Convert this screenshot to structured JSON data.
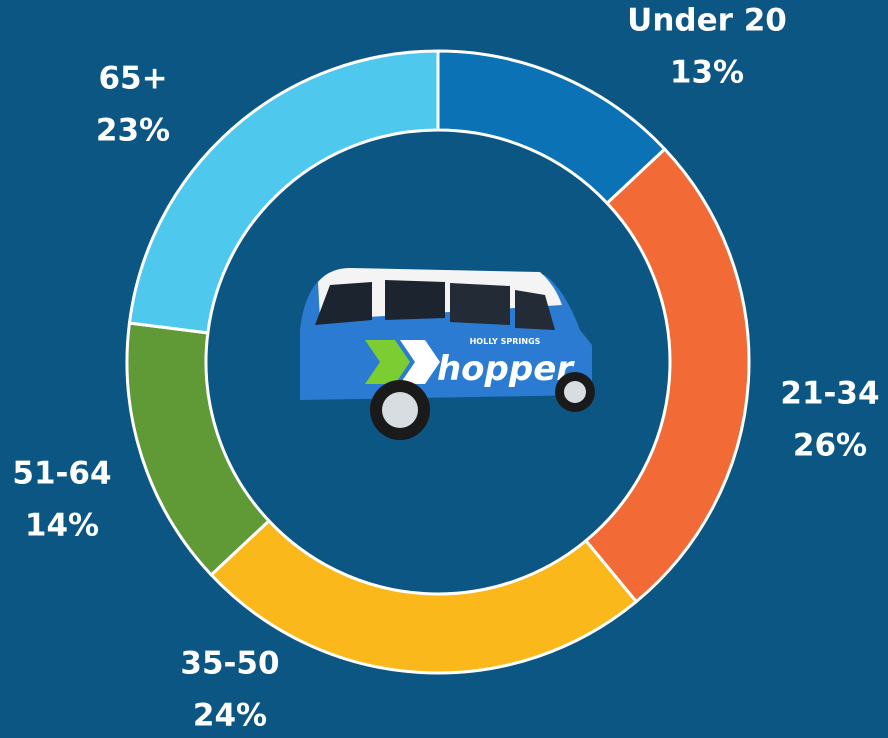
{
  "chart_data": {
    "type": "donut",
    "categories": [
      "Under 20",
      "21-34",
      "35-50",
      "51-64",
      "65+"
    ],
    "values": [
      13,
      26,
      24,
      14,
      23
    ],
    "value_labels": [
      "13%",
      "26%",
      "24%",
      "14%",
      "23%"
    ],
    "colors": [
      "#0a72b5",
      "#f26a36",
      "#fbb81b",
      "#5f9a37",
      "#4ec9ed"
    ],
    "annotations": [
      "HOLLY SPRINGS",
      "hopper"
    ]
  }
}
